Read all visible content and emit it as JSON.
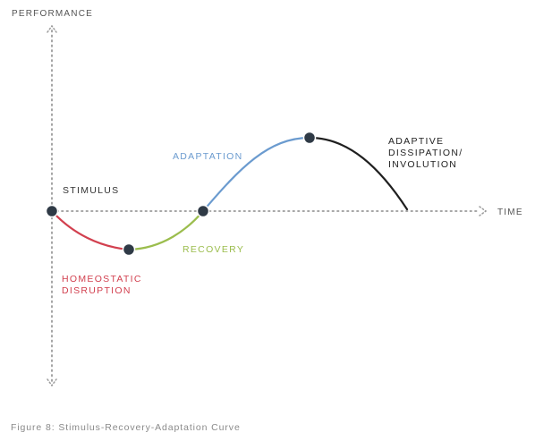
{
  "axes": {
    "y_label": "PERFORMANCE",
    "x_label": "TIME"
  },
  "phases": {
    "stimulus": "STIMULUS",
    "homeostatic_disruption": [
      "HOMEOSTATIC",
      "DISRUPTION"
    ],
    "recovery": "RECOVERY",
    "adaptation": "ADAPTATION",
    "adaptive_dissipation": [
      "ADAPTIVE",
      "DISSIPATION/",
      "INVOLUTION"
    ]
  },
  "colors": {
    "axis": "#9a9a9a",
    "axis_label": "#555555",
    "stimulus": "#333333",
    "homeostatic_disruption": "#d2404f",
    "recovery": "#9bbd4d",
    "adaptation": "#6b9bcf",
    "adaptive_dissipation": "#1f1f1f",
    "node": "#2f3a46",
    "caption": "#8a8a8a"
  },
  "caption": "Figure 8: Stimulus-Recovery-Adaptation Curve"
}
